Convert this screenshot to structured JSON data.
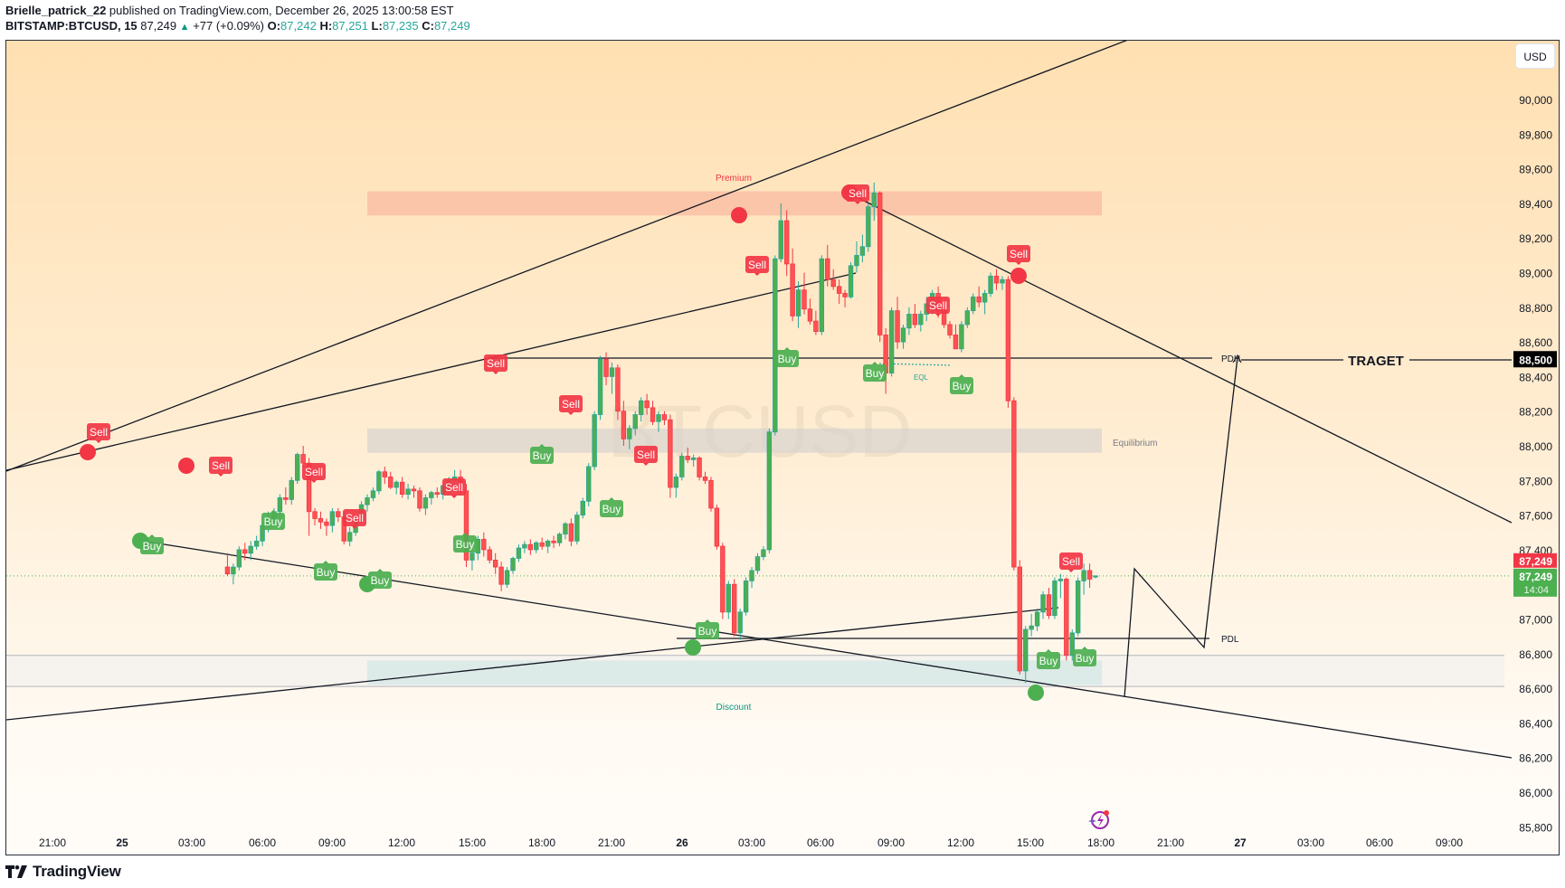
{
  "header": {
    "publisher": "Brielle_patrick_22",
    "published_text": "published on TradingView.com, December 26, 2025 13:00:58 EST",
    "symbol": "BITSTAMP:BTCUSD, 15",
    "last": "87,249",
    "change": "+77 (+0.09%)",
    "o_label": "O:",
    "o": "87,242",
    "h_label": "H:",
    "h": "87,251",
    "l_label": "L:",
    "l": "87,235",
    "c_label": "C:",
    "c": "87,249"
  },
  "currency_button": "USD",
  "watermark": "BTCUSD",
  "logo_text": "TradingView",
  "colors": {
    "up": "#26a69a",
    "up_fill": "#4caf50",
    "down": "#f23645",
    "down_fill": "#ff5252",
    "premium_zone": "#f9b9a2",
    "discount_zone": "#b2dfdb",
    "equilibrium_zone": "#d7d3cd"
  },
  "annotations": {
    "premium": "Premium",
    "equilibrium": "Equilibrium",
    "discount": "Discount",
    "pdh": "PDH",
    "pdl": "PDL",
    "eql": "EQL",
    "target": "TRAGET"
  },
  "price_axis": {
    "labels": [
      "90,000",
      "89,800",
      "89,600",
      "89,400",
      "89,200",
      "89,000",
      "88,800",
      "88,600",
      "88,400",
      "88,200",
      "88,000",
      "87,800",
      "87,600",
      "87,400",
      "87,000",
      "86,800",
      "86,600",
      "86,400",
      "86,200",
      "86,000",
      "85,800"
    ],
    "target_tag": "88,500",
    "sell_tag": "87,249",
    "buy_tag": "87,249",
    "countdown": "14:04"
  },
  "time_axis": {
    "labels": [
      "21:00",
      "25",
      "03:00",
      "06:00",
      "09:00",
      "12:00",
      "15:00",
      "18:00",
      "21:00",
      "26",
      "03:00",
      "06:00",
      "09:00",
      "12:00",
      "15:00",
      "18:00",
      "21:00",
      "27",
      "03:00",
      "06:00",
      "09:00"
    ]
  },
  "signals": {
    "sell": "Sell",
    "buy": "Buy"
  },
  "chart_data": {
    "type": "candlestick",
    "title": "BITSTAMP:BTCUSD, 15",
    "xlabel": "",
    "ylabel": "USD",
    "ylim": [
      85800,
      90150
    ],
    "x_ticks": [
      "21:00",
      "25",
      "03:00",
      "06:00",
      "09:00",
      "12:00",
      "15:00",
      "18:00",
      "21:00",
      "26",
      "03:00",
      "06:00",
      "09:00",
      "12:00",
      "15:00",
      "18:00",
      "21:00",
      "27",
      "03:00",
      "06:00",
      "09:00"
    ],
    "y_ticks": [
      85800,
      86000,
      86200,
      86400,
      86600,
      86800,
      87000,
      87200,
      87400,
      87600,
      87800,
      88000,
      88200,
      88400,
      88600,
      88800,
      89000,
      89200,
      89400,
      89600,
      89800,
      90000
    ],
    "last_price": 87249,
    "ohlc_last": {
      "open": 87242,
      "high": 87251,
      "low": 87235,
      "close": 87249
    },
    "key_points": [
      {
        "time": "Dec 24 22:30",
        "price": 87990,
        "event": "Sell (swing high)"
      },
      {
        "time": "Dec 25 02:30",
        "price": 87830,
        "event": "Sell"
      },
      {
        "time": "Dec 25 00:30",
        "price": 87450,
        "event": "Buy"
      },
      {
        "time": "Dec 25 10:00",
        "price": 87190,
        "event": "Buy"
      },
      {
        "time": "Dec 25 15:15",
        "price": 88500,
        "event": "Sell"
      },
      {
        "time": "Dec 26 00:15",
        "price": 86880,
        "event": "Buy (swing low)"
      },
      {
        "time": "Dec 26 02:30",
        "price": 89400,
        "event": "Sell (swing high)"
      },
      {
        "time": "Dec 26 07:30",
        "price": 89480,
        "event": "Sell (swing high)"
      },
      {
        "time": "Dec 26 14:45",
        "price": 88980,
        "event": "Sell"
      },
      {
        "time": "Dec 26 15:15",
        "price": 86630,
        "event": "Buy (swing low)"
      }
    ],
    "zones": [
      {
        "name": "Premium",
        "from": 89330,
        "to": 89470
      },
      {
        "name": "Equilibrium",
        "from": 87960,
        "to": 88100
      },
      {
        "name": "Discount",
        "from": 86620,
        "to": 86760
      }
    ],
    "levels": [
      {
        "name": "PDH",
        "price": 88520
      },
      {
        "name": "PDL",
        "price": 86900
      },
      {
        "name": "TRAGET",
        "price": 88500
      }
    ],
    "projection": [
      {
        "time": "Dec 26 19:00",
        "price": 86600
      },
      {
        "time": "Dec 26 19:15",
        "price": 87250
      },
      {
        "time": "Dec 26 23:00",
        "price": 86840
      },
      {
        "time": "Dec 27 00:00",
        "price": 88520
      }
    ]
  }
}
